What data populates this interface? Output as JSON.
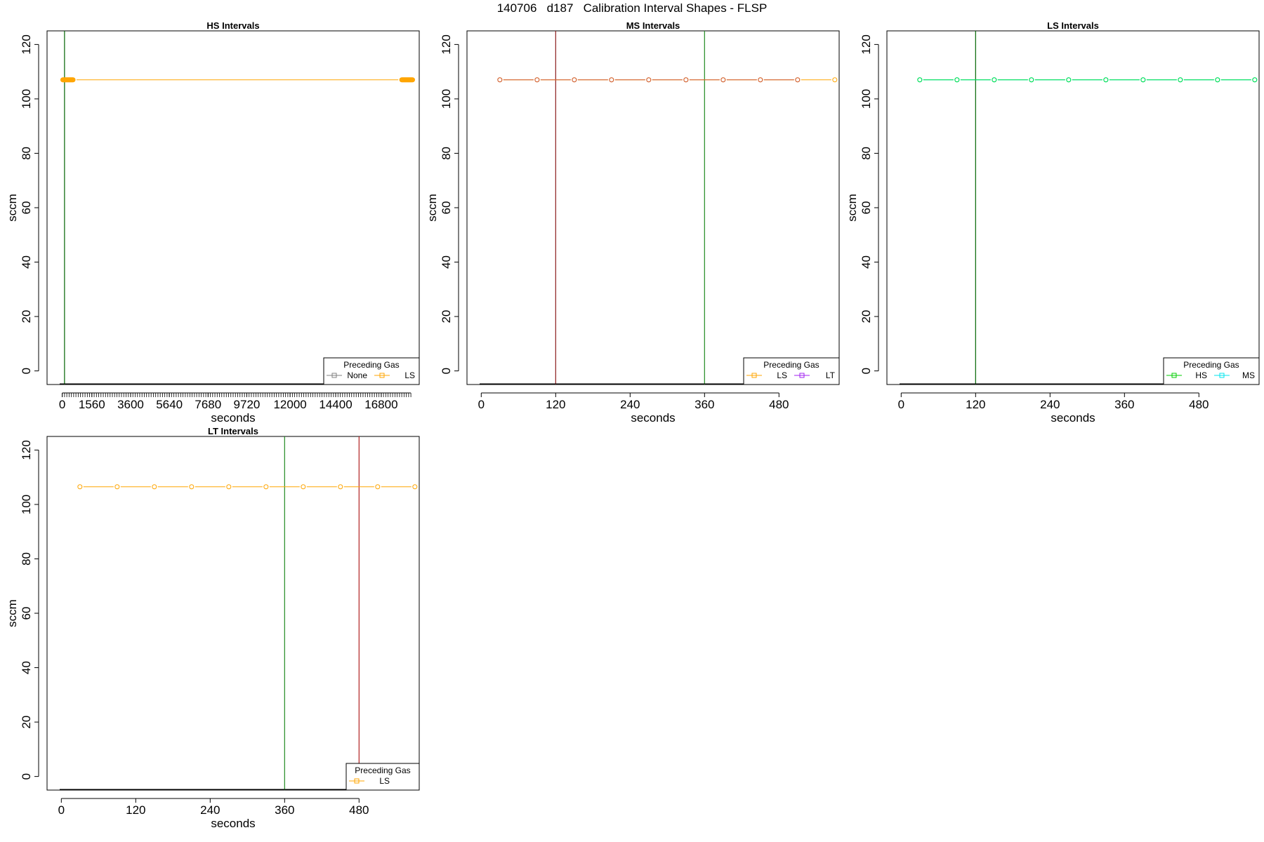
{
  "page": {
    "title": "140706   d187   Calibration Interval Shapes - FLSP"
  },
  "chart_data": [
    {
      "type": "line",
      "title": "HS Intervals",
      "xlabel": "seconds",
      "ylabel": "sccm",
      "xlim": [
        -800,
        18800
      ],
      "ylim": [
        -5,
        125
      ],
      "xticks_labeled": [
        0,
        1560,
        3600,
        5640,
        7680,
        9720,
        12000,
        14400,
        16800
      ],
      "xticks_minor_step": 120,
      "yticks": [
        0,
        20,
        40,
        60,
        80,
        100,
        120
      ],
      "vlines": [
        {
          "x": 120,
          "color": "#006400"
        }
      ],
      "legend": {
        "title": "Preceding Gas",
        "position": "bottom-right",
        "entries": [
          {
            "label": "None",
            "color": "#808080"
          },
          {
            "label": "LS",
            "color": "#FFA500"
          }
        ]
      },
      "series": [
        {
          "color": "#FFA500",
          "x": [
            30,
            60,
            90,
            120,
            150,
            180,
            210,
            240,
            270,
            300,
            330,
            360,
            390,
            420,
            450,
            480,
            510,
            540,
            570,
            17880,
            17910,
            17940,
            17970,
            18000,
            18030,
            18060,
            18090,
            18120,
            18150,
            18180,
            18210,
            18240,
            18270,
            18300,
            18330,
            18360,
            18390,
            18420,
            18450
          ],
          "y": [
            107,
            107,
            107,
            107,
            107,
            107,
            107,
            107,
            107,
            107,
            107,
            107,
            107,
            107,
            107,
            107,
            107,
            107,
            107,
            107,
            107,
            107,
            107,
            107,
            107,
            107,
            107,
            107,
            107,
            107,
            107,
            107,
            107,
            107,
            107,
            107,
            107,
            107,
            107
          ]
        }
      ]
    },
    {
      "type": "line",
      "title": "MS Intervals",
      "xlabel": "seconds",
      "ylabel": "sccm",
      "xlim": [
        -23,
        577
      ],
      "ylim": [
        -5,
        125
      ],
      "xticks_labeled": [
        0,
        120,
        240,
        360,
        480
      ],
      "yticks": [
        0,
        20,
        40,
        60,
        80,
        100,
        120
      ],
      "vlines": [
        {
          "x": 120,
          "color": "#8B1A1A"
        },
        {
          "x": 360,
          "color": "#228B22"
        }
      ],
      "legend": {
        "title": "Preceding Gas",
        "position": "bottom-right",
        "entries": [
          {
            "label": "LS",
            "color": "#FFA500"
          },
          {
            "label": "LT",
            "color": "#A020F0"
          }
        ]
      },
      "series": [
        {
          "color": "#FFA500",
          "x": [
            30,
            90,
            150,
            210,
            270,
            330,
            390,
            450,
            510,
            570
          ],
          "y": [
            107,
            107,
            107,
            107,
            107,
            107,
            107,
            107,
            107,
            107
          ]
        },
        {
          "color": "#CD5C3C",
          "x": [
            30,
            90,
            150,
            210,
            270,
            330,
            390,
            450,
            510
          ],
          "y": [
            107,
            107,
            107,
            107,
            107,
            107,
            107,
            107,
            107
          ]
        }
      ]
    },
    {
      "type": "line",
      "title": "LS Intervals",
      "xlabel": "seconds",
      "ylabel": "sccm",
      "xlim": [
        -23,
        577
      ],
      "ylim": [
        -5,
        125
      ],
      "xticks_labeled": [
        0,
        120,
        240,
        360,
        480
      ],
      "yticks": [
        0,
        20,
        40,
        60,
        80,
        100,
        120
      ],
      "vlines": [
        {
          "x": 120,
          "color": "#006400"
        }
      ],
      "legend": {
        "title": "Preceding Gas",
        "position": "bottom-right",
        "entries": [
          {
            "label": "HS",
            "color": "#00CD00"
          },
          {
            "label": "MS",
            "color": "#00E5EE"
          }
        ]
      },
      "series": [
        {
          "color": "#00E5EE",
          "x": [
            30,
            90,
            150,
            210,
            270,
            330,
            390,
            450,
            510,
            570
          ],
          "y": [
            107,
            107,
            107,
            107,
            107,
            107,
            107,
            107,
            107,
            107
          ]
        },
        {
          "color": "#00DD44",
          "x": [
            30,
            90,
            150,
            210,
            270,
            330,
            390,
            450,
            510,
            570
          ],
          "y": [
            107,
            107,
            107,
            107,
            107,
            107,
            107,
            107,
            107,
            107
          ]
        }
      ]
    },
    {
      "type": "line",
      "title": "LT Intervals",
      "xlabel": "seconds",
      "ylabel": "sccm",
      "xlim": [
        -23,
        577
      ],
      "ylim": [
        -5,
        125
      ],
      "xticks_labeled": [
        0,
        120,
        240,
        360,
        480
      ],
      "yticks": [
        0,
        20,
        40,
        60,
        80,
        100,
        120
      ],
      "vlines": [
        {
          "x": 360,
          "color": "#228B22"
        },
        {
          "x": 480,
          "color": "#B22222"
        }
      ],
      "legend": {
        "title": "Preceding Gas",
        "position": "bottom-right",
        "entries": [
          {
            "label": "LS",
            "color": "#FFA500"
          }
        ]
      },
      "series": [
        {
          "color": "#FFA500",
          "x": [
            30,
            90,
            150,
            210,
            270,
            330,
            390,
            450,
            510,
            570
          ],
          "y": [
            106.5,
            106.5,
            106.5,
            106.5,
            106.5,
            106.5,
            106.5,
            106.5,
            106.5,
            106.5
          ]
        }
      ]
    }
  ]
}
